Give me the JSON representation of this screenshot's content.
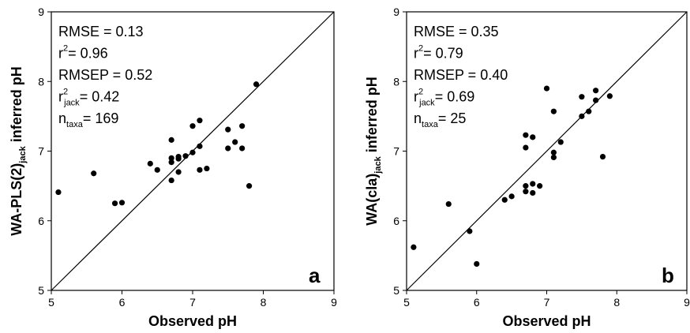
{
  "chart_data": [
    {
      "type": "scatter",
      "panel_label": "a",
      "xlabel": "Observed pH",
      "ylabel": {
        "pre": "WA-PLS(2)",
        "sub": "jack",
        "post": " inferred pH"
      },
      "xlim": [
        5,
        9
      ],
      "ylim": [
        5,
        9
      ],
      "xticks": [
        5,
        6,
        7,
        8,
        9
      ],
      "yticks": [
        5,
        6,
        7,
        8,
        9
      ],
      "one_to_one_line": true,
      "grid": false,
      "stats": [
        {
          "base": "RMSE = 0.13",
          "sup": "",
          "sub": "",
          "rest": ""
        },
        {
          "base": "r",
          "sup": "2",
          "sub": "",
          "rest": "= 0.96"
        },
        {
          "base": "RMSEP = 0.52",
          "sup": "",
          "sub": "",
          "rest": ""
        },
        {
          "base": "r",
          "sup": "2",
          "sub": "jack",
          "rest": "= 0.42"
        },
        {
          "base": "n",
          "sup": "",
          "sub": "taxa",
          "rest": "= 169"
        }
      ],
      "points": [
        [
          5.1,
          6.41
        ],
        [
          5.6,
          6.68
        ],
        [
          5.9,
          6.25
        ],
        [
          6.0,
          6.26
        ],
        [
          6.4,
          6.82
        ],
        [
          6.5,
          6.73
        ],
        [
          6.7,
          7.16
        ],
        [
          6.7,
          6.9
        ],
        [
          6.7,
          6.84
        ],
        [
          6.7,
          6.58
        ],
        [
          6.8,
          6.89
        ],
        [
          6.8,
          6.92
        ],
        [
          6.8,
          6.7
        ],
        [
          6.9,
          6.93
        ],
        [
          7.0,
          7.36
        ],
        [
          7.0,
          6.98
        ],
        [
          7.1,
          7.44
        ],
        [
          7.1,
          7.07
        ],
        [
          7.1,
          6.73
        ],
        [
          7.2,
          6.75
        ],
        [
          7.5,
          7.31
        ],
        [
          7.5,
          7.04
        ],
        [
          7.6,
          7.13
        ],
        [
          7.7,
          7.36
        ],
        [
          7.7,
          7.04
        ],
        [
          7.8,
          6.5
        ],
        [
          7.9,
          7.96
        ]
      ]
    },
    {
      "type": "scatter",
      "panel_label": "b",
      "xlabel": "Observed pH",
      "ylabel": {
        "pre": "WA(cla)",
        "sub": "jack",
        "post": " inferred pH"
      },
      "xlim": [
        5,
        9
      ],
      "ylim": [
        5,
        9
      ],
      "xticks": [
        5,
        6,
        7,
        8,
        9
      ],
      "yticks": [
        5,
        6,
        7,
        8,
        9
      ],
      "one_to_one_line": true,
      "grid": false,
      "stats": [
        {
          "base": "RMSE = 0.35",
          "sup": "",
          "sub": "",
          "rest": ""
        },
        {
          "base": "r",
          "sup": "2",
          "sub": "",
          "rest": "= 0.79"
        },
        {
          "base": "RMSEP = 0.40",
          "sup": "",
          "sub": "",
          "rest": ""
        },
        {
          "base": "r",
          "sup": "2",
          "sub": "jack",
          "rest": "= 0.69"
        },
        {
          "base": "n",
          "sup": "",
          "sub": "taxa",
          "rest": "= 25"
        }
      ],
      "points": [
        [
          5.1,
          5.62
        ],
        [
          5.6,
          6.24
        ],
        [
          5.9,
          5.85
        ],
        [
          6.0,
          5.38
        ],
        [
          6.4,
          6.3
        ],
        [
          6.5,
          6.35
        ],
        [
          6.7,
          7.23
        ],
        [
          6.7,
          7.05
        ],
        [
          6.7,
          6.5
        ],
        [
          6.7,
          6.42
        ],
        [
          6.8,
          7.2
        ],
        [
          6.8,
          6.53
        ],
        [
          6.8,
          6.4
        ],
        [
          6.9,
          6.5
        ],
        [
          7.0,
          7.9
        ],
        [
          7.1,
          7.57
        ],
        [
          7.1,
          6.98
        ],
        [
          7.1,
          6.91
        ],
        [
          7.2,
          7.13
        ],
        [
          7.5,
          7.78
        ],
        [
          7.5,
          7.5
        ],
        [
          7.6,
          7.57
        ],
        [
          7.7,
          7.87
        ],
        [
          7.7,
          7.73
        ],
        [
          7.8,
          6.92
        ],
        [
          7.9,
          7.79
        ]
      ]
    }
  ]
}
